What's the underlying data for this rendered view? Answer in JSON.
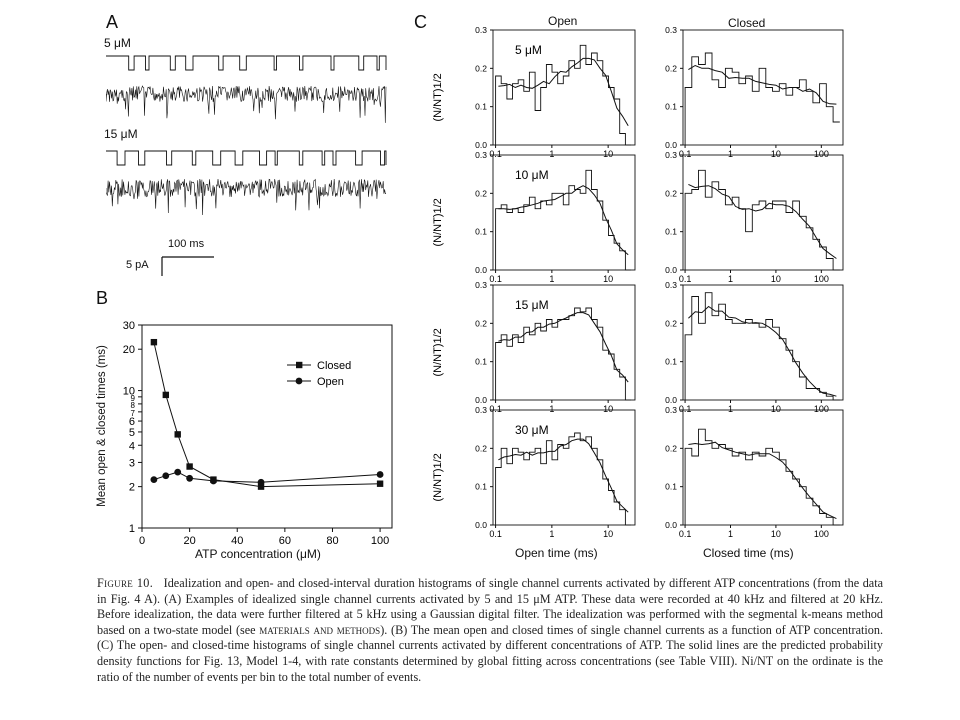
{
  "panelA": {
    "letter": "A",
    "trace1_label": "5 μM",
    "trace2_label": "15 μM",
    "time_scale": "100 ms",
    "current_scale": "5 pA"
  },
  "panelB": {
    "letter": "B",
    "ylabel": "Mean open & closed times (ms)",
    "xlabel": "ATP concentration (μM)",
    "xticks": [
      "0",
      "20",
      "40",
      "60",
      "80",
      "100"
    ],
    "yticks": [
      "1",
      "2",
      "3",
      "4",
      "5",
      "6",
      "7",
      "8",
      "9",
      "10",
      "20",
      "30"
    ]
  },
  "panelC": {
    "letter": "C",
    "col_open": "Open",
    "col_closed": "Closed",
    "xlabel_open": "Open time (ms)",
    "xlabel_closed": "Closed time (ms)",
    "ylabel": "(N/N",
    "ylabel_sub": "T",
    "ylabel_sup": "1/2",
    "yticks": [
      "0.0",
      "0.1",
      "0.2",
      "0.3"
    ],
    "open_xticks": [
      "0.1",
      "1",
      "10"
    ],
    "closed_xticks": [
      "0.1",
      "1",
      "10",
      "100"
    ],
    "rows": [
      {
        "label": "5 μM"
      },
      {
        "label": "10 μM"
      },
      {
        "label": "15 μM"
      },
      {
        "label": "30 μM"
      }
    ]
  },
  "caption": {
    "figure_label": "Figure 10.",
    "text": "Idealization and open- and closed-interval duration histograms of single channel currents activated by different ATP concentrations (from the data in Fig. 4 A). (A) Examples of idealized single channel currents activated by 5 and 15 μM ATP. These data were recorded at 40 kHz and filtered at 20 kHz. Before idealization, the data were further filtered at 5 kHz using a Gaussian digital filter. The idealization was performed with the segmental k-means method based on a two-state model (see",
    "ref": "materials and methods",
    "text2": "). (B) The mean open and closed times of single channel currents as a function of ATP concentration. (C) The open- and closed-time histograms of single channel currents activated by different concentrations of ATP. The solid lines are the predicted probability density functions for Fig. 13, Model 1-4, with rate constants determined by global fitting across concentrations (see Table VIII). Ni/NT on the ordinate is the ratio of the number of events per bin to the total number of events."
  },
  "chart_data": [
    {
      "type": "line",
      "title": "",
      "xlabel": "ATP concentration (μM)",
      "ylabel": "Mean open & closed times (ms)",
      "xlim": [
        0,
        105
      ],
      "ylim": [
        1,
        30
      ],
      "yscale": "log",
      "legend_position": "right",
      "series": [
        {
          "name": "Closed",
          "marker": "square",
          "x": [
            5,
            10,
            15,
            20,
            30,
            50,
            100
          ],
          "y": [
            22.5,
            9.3,
            4.8,
            2.8,
            2.25,
            2.0,
            2.1
          ]
        },
        {
          "name": "Open",
          "marker": "circle",
          "x": [
            5,
            10,
            15,
            20,
            30,
            50,
            100
          ],
          "y": [
            2.25,
            2.4,
            2.55,
            2.3,
            2.2,
            2.15,
            2.45
          ]
        }
      ]
    },
    {
      "type": "histogram",
      "panel": "open",
      "xscale": "log",
      "xlabel": "Open time (ms)",
      "ylabel": "(N/NT)1/2",
      "ylim": [
        0,
        0.3
      ],
      "xlim": [
        0.09,
        30
      ],
      "concentrations": [
        "5 μM",
        "10 μM",
        "15 μM",
        "30 μM"
      ],
      "bins_x": [
        0.1,
        0.126,
        0.158,
        0.2,
        0.25,
        0.32,
        0.4,
        0.5,
        0.63,
        0.8,
        1.0,
        1.26,
        1.58,
        2.0,
        2.5,
        3.2,
        4.0,
        5.0,
        6.3,
        8.0,
        10,
        12.6,
        15.8,
        20
      ],
      "counts": [
        [
          0.18,
          0.16,
          0.12,
          0.16,
          0.17,
          0.14,
          0.19,
          0.09,
          0.15,
          0.21,
          0.19,
          0.16,
          0.18,
          0.22,
          0.2,
          0.26,
          0.21,
          0.24,
          0.22,
          0.18,
          0.15,
          0.12,
          0.03,
          0.0
        ],
        [
          0.16,
          0.17,
          0.15,
          0.16,
          0.15,
          0.17,
          0.19,
          0.16,
          0.18,
          0.17,
          0.2,
          0.2,
          0.17,
          0.22,
          0.21,
          0.2,
          0.26,
          0.21,
          0.18,
          0.13,
          0.09,
          0.07,
          0.05,
          0.0
        ],
        [
          0.15,
          0.17,
          0.14,
          0.17,
          0.15,
          0.19,
          0.17,
          0.2,
          0.18,
          0.21,
          0.19,
          0.21,
          0.21,
          0.22,
          0.24,
          0.23,
          0.24,
          0.21,
          0.19,
          0.13,
          0.12,
          0.08,
          0.06,
          0.0
        ],
        [
          0.15,
          0.2,
          0.16,
          0.2,
          0.19,
          0.17,
          0.19,
          0.2,
          0.16,
          0.22,
          0.17,
          0.21,
          0.2,
          0.23,
          0.24,
          0.22,
          0.23,
          0.2,
          0.17,
          0.12,
          0.09,
          0.06,
          0.04,
          0.0
        ]
      ],
      "fit": [
        [
          0.15,
          0.17,
          0.19,
          0.21,
          0.22,
          0.21,
          0.16,
          0.08,
          0.02
        ],
        [
          0.14,
          0.17,
          0.19,
          0.22,
          0.24,
          0.24,
          0.18,
          0.09,
          0.02
        ],
        [
          0.14,
          0.16,
          0.18,
          0.21,
          0.24,
          0.24,
          0.19,
          0.1,
          0.03
        ],
        [
          0.14,
          0.17,
          0.19,
          0.2,
          0.22,
          0.22,
          0.17,
          0.09,
          0.02
        ]
      ]
    },
    {
      "type": "histogram",
      "panel": "closed",
      "xscale": "log",
      "xlabel": "Closed time (ms)",
      "ylabel": "(N/NT)1/2",
      "ylim": [
        0,
        0.3
      ],
      "xlim": [
        0.09,
        300
      ],
      "concentrations": [
        "5 μM",
        "10 μM",
        "15 μM",
        "30 μM"
      ],
      "counts": [
        [
          0.15,
          0.23,
          0.21,
          0.24,
          0.17,
          0.15,
          0.2,
          0.19,
          0.16,
          0.18,
          0.14,
          0.2,
          0.15,
          0.14,
          0.16,
          0.13,
          0.15,
          0.17,
          0.14,
          0.11,
          0.16,
          0.1,
          0.06
        ],
        [
          0.2,
          0.21,
          0.26,
          0.19,
          0.23,
          0.21,
          0.17,
          0.19,
          0.16,
          0.1,
          0.17,
          0.18,
          0.16,
          0.18,
          0.18,
          0.15,
          0.18,
          0.14,
          0.11,
          0.08,
          0.06,
          0.03,
          0.0
        ],
        [
          0.17,
          0.27,
          0.2,
          0.28,
          0.22,
          0.25,
          0.21,
          0.2,
          0.2,
          0.21,
          0.2,
          0.19,
          0.21,
          0.19,
          0.16,
          0.13,
          0.1,
          0.06,
          0.03,
          0.03,
          0.02,
          0.01,
          0.0
        ],
        [
          0.2,
          0.18,
          0.25,
          0.22,
          0.2,
          0.21,
          0.2,
          0.18,
          0.19,
          0.17,
          0.19,
          0.18,
          0.2,
          0.19,
          0.17,
          0.14,
          0.12,
          0.1,
          0.07,
          0.05,
          0.03,
          0.02,
          0.0
        ]
      ]
    }
  ]
}
